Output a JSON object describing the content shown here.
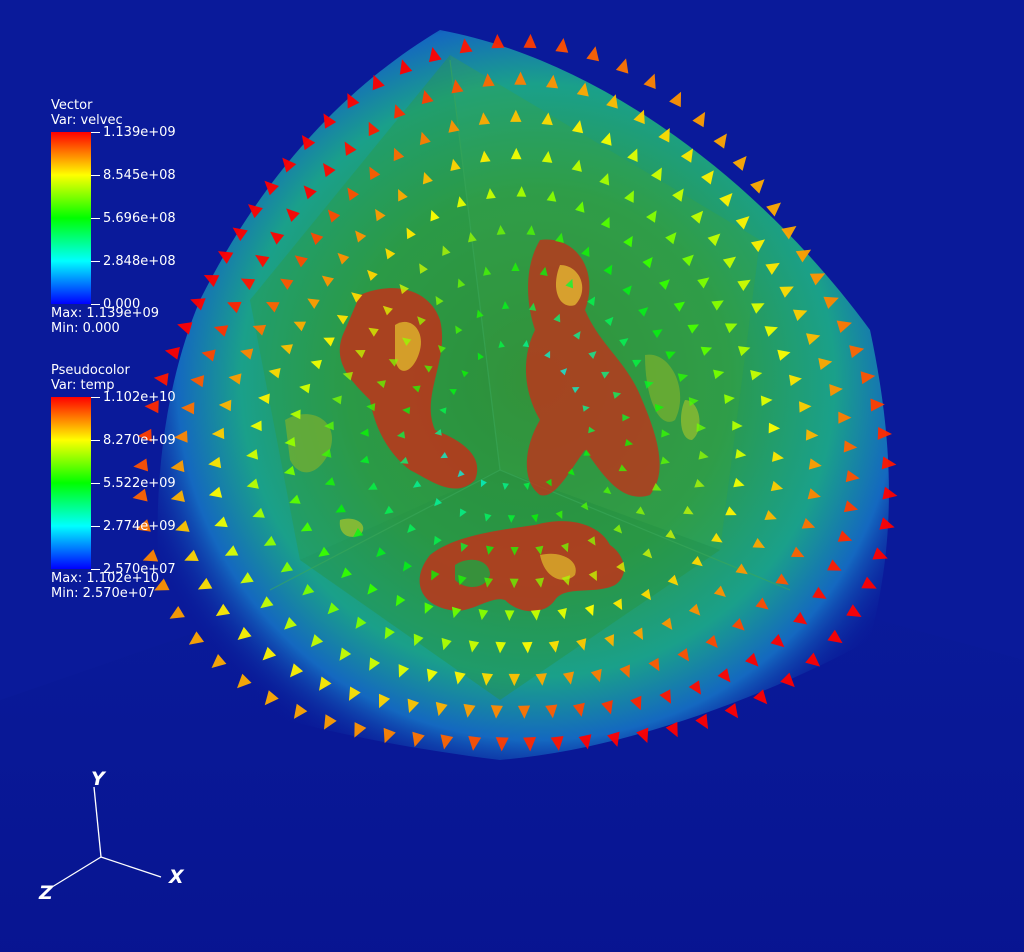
{
  "vector_legend": {
    "plot_name": "Vector",
    "var_line": "Var: velvec",
    "ticks": [
      "1.139e+09",
      "8.545e+08",
      "5.696e+08",
      "2.848e+08",
      "0.000"
    ],
    "max_line": "Max:  1.139e+09",
    "min_line": "Min:  0.000"
  },
  "pseudocolor_legend": {
    "plot_name": "Pseudocolor",
    "var_line": "Var: temp",
    "ticks": [
      "1.102e+10",
      "8.270e+09",
      "5.522e+09",
      "2.774e+09",
      "2.570e+07"
    ],
    "max_line": "Max:  1.102e+10",
    "min_line": "Min:  2.570e+07"
  },
  "axes": {
    "x_label": "X",
    "y_label": "Y",
    "z_label": "Z"
  },
  "colors": {
    "background": "#0a1a9a",
    "floor": "#081289",
    "colormap": [
      "#0000ff",
      "#00ffff",
      "#00ff00",
      "#ffff00",
      "#ff0000"
    ],
    "hotspot": "#c0321a",
    "volume_green": "#1fa23a"
  }
}
